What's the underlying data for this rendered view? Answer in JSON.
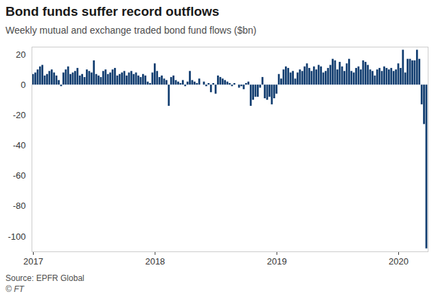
{
  "chart_data": {
    "type": "bar",
    "title": "Bond funds suffer record outflows",
    "subtitle": "Weekly mutual and exchange traded bond fund flows ($bn)",
    "source": "Source: EPFR Global",
    "credit": "© FT",
    "color": "#0f3b6e",
    "grid": false,
    "categories": [
      "2017",
      null,
      null,
      null,
      null,
      null,
      null,
      null,
      null,
      null,
      null,
      null,
      null,
      null,
      null,
      null,
      null,
      null,
      null,
      null,
      null,
      null,
      null,
      null,
      null,
      null,
      null,
      null,
      null,
      null,
      null,
      null,
      null,
      null,
      null,
      null,
      null,
      null,
      null,
      null,
      null,
      null,
      null,
      null,
      null,
      null,
      null,
      null,
      null,
      null,
      null,
      null,
      "2018",
      null,
      null,
      null,
      null,
      null,
      null,
      null,
      null,
      null,
      null,
      null,
      null,
      null,
      null,
      null,
      null,
      null,
      null,
      null,
      null,
      null,
      null,
      null,
      null,
      null,
      null,
      null,
      null,
      null,
      null,
      null,
      null,
      null,
      null,
      null,
      null,
      null,
      null,
      null,
      null,
      null,
      null,
      null,
      null,
      null,
      null,
      null,
      null,
      null,
      null,
      null,
      "2019",
      null,
      null,
      null,
      null,
      null,
      null,
      null,
      null,
      null,
      null,
      null,
      null,
      null,
      null,
      null,
      null,
      null,
      null,
      null,
      null,
      null,
      null,
      null,
      null,
      null,
      null,
      null,
      null,
      null,
      null,
      null,
      null,
      null,
      null,
      null,
      null,
      null,
      null,
      null,
      null,
      null,
      null,
      null,
      null,
      null,
      null,
      null,
      null,
      null,
      null,
      null,
      "2020",
      null,
      null,
      null,
      null,
      null,
      null,
      null,
      null,
      null,
      null,
      null,
      null
    ],
    "values": [
      7,
      8,
      10,
      12,
      13,
      6,
      7,
      9,
      10,
      8,
      6,
      3,
      -1,
      8,
      10,
      12,
      7,
      8,
      9,
      11,
      6,
      7,
      5,
      10,
      9,
      8,
      16,
      7,
      6,
      5,
      9,
      10,
      7,
      8,
      10,
      11,
      6,
      7,
      8,
      9,
      6,
      8,
      9,
      7,
      8,
      6,
      5,
      7,
      6,
      2,
      1,
      8,
      14,
      9,
      5,
      6,
      4,
      3,
      -14,
      5,
      6,
      3,
      2,
      1,
      3,
      -1,
      2,
      9,
      3,
      2,
      1,
      4,
      0,
      2,
      -1,
      1,
      -5,
      1,
      -6,
      6,
      5,
      4,
      3,
      2,
      1,
      -1,
      1,
      0,
      -2,
      -1,
      -3,
      1,
      2,
      -14,
      -10,
      -8,
      -8,
      -2,
      5,
      -9,
      -10,
      -8,
      -13,
      -9,
      -6,
      7,
      4,
      10,
      12,
      11,
      8,
      9,
      4,
      8,
      10,
      9,
      12,
      14,
      11,
      9,
      12,
      10,
      13,
      12,
      8,
      9,
      11,
      13,
      17,
      16,
      10,
      15,
      12,
      9,
      14,
      17,
      9,
      8,
      11,
      12,
      10,
      16,
      15,
      13,
      10,
      9,
      6,
      10,
      11,
      9,
      12,
      11,
      10,
      11,
      9,
      10,
      14,
      11,
      23,
      8,
      17,
      17,
      16,
      16,
      23,
      17,
      -13,
      -26,
      -108
    ],
    "ylim": [
      -110,
      25
    ],
    "yticks": [
      -100,
      -80,
      -60,
      -40,
      -20,
      0,
      20
    ]
  }
}
